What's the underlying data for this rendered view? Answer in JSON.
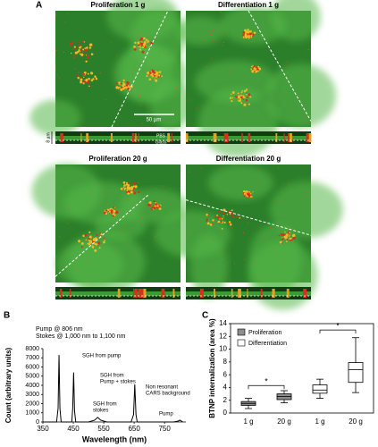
{
  "panel_labels": [
    "A",
    "B",
    "C"
  ],
  "images": [
    {
      "title": "Proliferation 1 g"
    },
    {
      "title": "Differentiation 1 g"
    },
    {
      "title": "Proliferation 20 g"
    },
    {
      "title": "Differentiation 20 g"
    }
  ],
  "scale_bar": "50 µm",
  "depth_label": "8 µm",
  "section_labels": [
    "PBS",
    "Glass"
  ],
  "chart_data": [
    {
      "type": "line",
      "subtitle": [
        "Pump @ 806 nm",
        "Stokes @ 1,000 nm to 1,100 nm"
      ],
      "x_label": "Wavelength (nm)",
      "y_label": "Count (arbitrary units)",
      "annotations": [
        [
          "SGH from pump"
        ],
        [
          "SGH from",
          "Pump + stokes"
        ],
        [
          "SGH from",
          "stokes"
        ],
        [
          "Non resonant",
          "CARS background"
        ],
        [
          "Pump"
        ]
      ],
      "x": [
        350,
        395,
        400,
        403,
        406,
        410,
        445,
        448,
        451,
        454,
        458,
        500,
        520,
        530,
        540,
        560,
        640,
        648,
        652,
        656,
        660,
        700,
        780,
        795,
        800,
        805,
        810
      ],
      "values": [
        0,
        0,
        1500,
        7300,
        1500,
        0,
        0,
        1500,
        5400,
        1200,
        0,
        0,
        200,
        500,
        200,
        0,
        0,
        800,
        4100,
        800,
        0,
        0,
        0,
        100,
        200,
        100,
        0
      ],
      "color": "#000000",
      "xlim": [
        350,
        820
      ],
      "xticks": [
        350,
        450,
        550,
        650,
        750
      ],
      "ylim": [
        0,
        8000
      ],
      "yticks": [
        0,
        1000,
        2000,
        3000,
        4000,
        5000,
        6000,
        7000,
        8000
      ]
    },
    {
      "type": "box",
      "y_label": "BTNP internalization (area %)",
      "categories": [
        "1 g",
        "20 g",
        "1 g",
        "20 g"
      ],
      "series": [
        {
          "name": "Proliferation",
          "color": "#8c8c8c",
          "values": [
            {
              "min": 0.7,
              "q1": 1.2,
              "median": 1.5,
              "q3": 1.8,
              "max": 2.3
            },
            {
              "min": 1.6,
              "q1": 2.1,
              "median": 2.6,
              "q3": 3.0,
              "max": 3.5
            },
            null,
            null
          ]
        },
        {
          "name": "Differentiation",
          "color": "#ffffff",
          "values": [
            null,
            null,
            {
              "min": 2.3,
              "q1": 3.1,
              "median": 3.6,
              "q3": 4.4,
              "max": 5.3
            },
            {
              "min": 3.2,
              "q1": 4.8,
              "median": 6.8,
              "q3": 7.9,
              "max": 11.8
            }
          ]
        }
      ],
      "brackets": [
        {
          "label": "*",
          "y": 4.3
        },
        {
          "label": "*",
          "y": 13
        }
      ],
      "ylim": [
        0,
        14
      ],
      "yticks": [
        0,
        2,
        4,
        6,
        8,
        10,
        12,
        14
      ]
    }
  ]
}
